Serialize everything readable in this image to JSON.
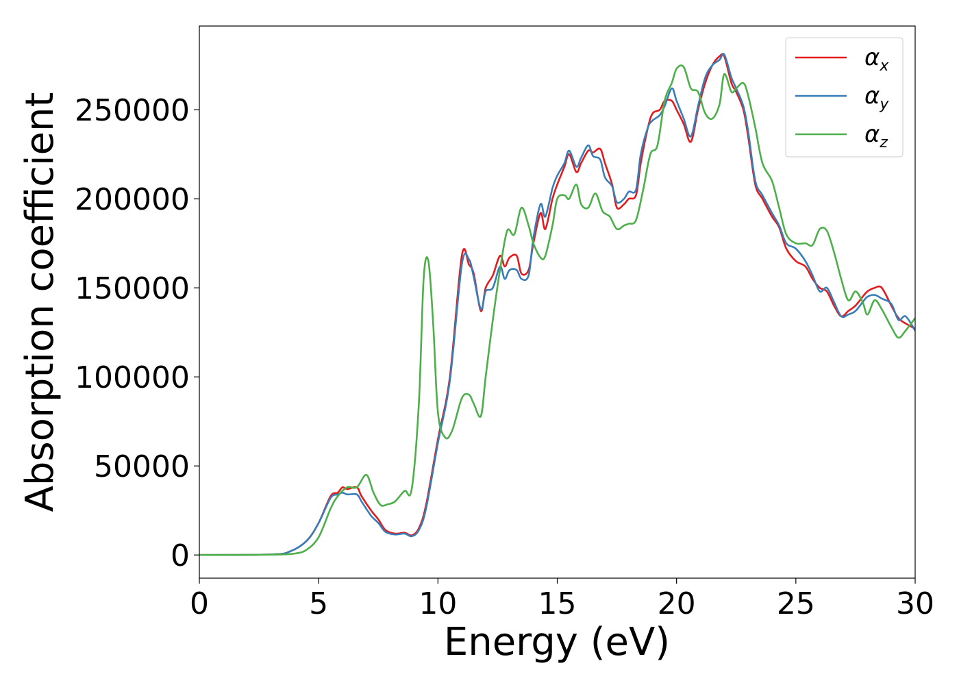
{
  "colors": {
    "alpha_x": "#e41a1c",
    "alpha_y": "#377eb8",
    "alpha_z": "#4daf4a"
  },
  "chart_data": {
    "type": "line",
    "title": "",
    "xlabel": "Energy (eV)",
    "ylabel": "Absorption coefficient",
    "xlim": [
      0,
      30
    ],
    "ylim": [
      -13000,
      297000
    ],
    "grid": false,
    "legend_position": "top-right",
    "x_ticks": [
      0,
      5,
      10,
      15,
      20,
      25,
      30
    ],
    "y_ticks": [
      0,
      50000,
      100000,
      150000,
      200000,
      250000
    ],
    "series": [
      {
        "name": "α_x",
        "legend_base": "α",
        "legend_sub": "x",
        "color": "#e41a1c",
        "x": [
          0,
          3,
          3.8,
          4.5,
          5.0,
          5.5,
          5.8,
          6.0,
          6.2,
          6.6,
          6.8,
          7.2,
          7.5,
          7.8,
          8.2,
          8.6,
          8.9,
          9.2,
          9.5,
          10.0,
          10.5,
          11.0,
          11.3,
          11.5,
          11.8,
          12.0,
          12.3,
          12.6,
          12.8,
          13.0,
          13.3,
          13.5,
          13.8,
          14.0,
          14.3,
          14.5,
          14.8,
          15.0,
          15.3,
          15.5,
          15.8,
          16.0,
          16.3,
          16.5,
          16.8,
          17.0,
          17.3,
          17.5,
          17.8,
          18.0,
          18.3,
          18.5,
          18.8,
          19.0,
          19.3,
          19.5,
          19.8,
          20.0,
          20.3,
          20.6,
          20.9,
          21.2,
          21.5,
          21.8,
          22.0,
          22.3,
          22.5,
          22.8,
          23.0,
          23.3,
          23.6,
          24.0,
          24.3,
          24.6,
          25.0,
          25.4,
          25.7,
          26.0,
          26.3,
          26.6,
          26.9,
          27.2,
          27.5,
          27.8,
          28.0,
          28.3,
          28.6,
          29.0,
          29.3,
          29.6,
          30.0
        ],
        "y": [
          0,
          300,
          2000,
          8000,
          18000,
          33000,
          35000,
          38000,
          37000,
          38000,
          33000,
          25000,
          20000,
          14000,
          12000,
          12500,
          11000,
          15000,
          28000,
          65000,
          100000,
          168000,
          163000,
          158000,
          137000,
          150000,
          157000,
          168000,
          162000,
          167000,
          168000,
          158000,
          160000,
          175000,
          192000,
          183000,
          200000,
          208000,
          218000,
          225000,
          215000,
          220000,
          227000,
          226000,
          228000,
          220000,
          208000,
          195000,
          197000,
          200000,
          202000,
          220000,
          240000,
          248000,
          250000,
          255000,
          255000,
          250000,
          242000,
          232000,
          250000,
          265000,
          275000,
          280000,
          280000,
          265000,
          260000,
          250000,
          235000,
          208000,
          200000,
          190000,
          184000,
          172000,
          165000,
          162000,
          155000,
          150000,
          148000,
          140000,
          134000,
          137000,
          140000,
          145000,
          148000,
          150000,
          150000,
          140000,
          133000,
          130000,
          127000
        ]
      },
      {
        "name": "α_y",
        "legend_base": "α",
        "legend_sub": "y",
        "color": "#377eb8",
        "x": [
          0,
          3,
          3.8,
          4.5,
          5.0,
          5.5,
          5.8,
          6.0,
          6.2,
          6.6,
          6.8,
          7.2,
          7.5,
          7.8,
          8.2,
          8.6,
          8.9,
          9.2,
          9.5,
          10.0,
          10.5,
          11.0,
          11.3,
          11.5,
          11.8,
          12.0,
          12.3,
          12.6,
          12.8,
          13.0,
          13.3,
          13.5,
          13.8,
          14.0,
          14.3,
          14.5,
          14.8,
          15.0,
          15.3,
          15.5,
          15.8,
          16.0,
          16.3,
          16.5,
          16.8,
          17.0,
          17.3,
          17.5,
          17.8,
          18.0,
          18.3,
          18.5,
          18.8,
          19.0,
          19.3,
          19.5,
          19.8,
          20.0,
          20.3,
          20.6,
          20.9,
          21.2,
          21.5,
          21.8,
          22.0,
          22.3,
          22.5,
          22.8,
          23.0,
          23.3,
          23.6,
          24.0,
          24.3,
          24.6,
          25.0,
          25.4,
          25.7,
          26.0,
          26.3,
          26.6,
          26.9,
          27.2,
          27.5,
          27.8,
          28.0,
          28.3,
          28.6,
          29.0,
          29.3,
          29.6,
          30.0
        ],
        "y": [
          0,
          300,
          2000,
          8000,
          18000,
          32000,
          34000,
          35000,
          34000,
          34000,
          30000,
          22000,
          18000,
          13000,
          11500,
          12000,
          10500,
          14000,
          26000,
          63000,
          98000,
          163000,
          166000,
          156000,
          138000,
          148000,
          150000,
          162000,
          155000,
          160000,
          160000,
          155000,
          157000,
          178000,
          197000,
          190000,
          206000,
          213000,
          220000,
          227000,
          218000,
          223000,
          230000,
          224000,
          222000,
          212000,
          207000,
          198000,
          200000,
          204000,
          205000,
          225000,
          240000,
          244000,
          247000,
          252000,
          262000,
          255000,
          245000,
          235000,
          252000,
          268000,
          275000,
          278000,
          281000,
          268000,
          262000,
          252000,
          238000,
          210000,
          202000,
          192000,
          185000,
          175000,
          172000,
          165000,
          157000,
          148000,
          150000,
          142000,
          134000,
          135000,
          137000,
          142000,
          145000,
          146000,
          144000,
          141000,
          132000,
          134000,
          126000
        ]
      },
      {
        "name": "α_z",
        "legend_base": "α",
        "legend_sub": "z",
        "color": "#4daf4a",
        "x": [
          0,
          3,
          4.0,
          4.5,
          5.0,
          5.5,
          5.8,
          6.2,
          6.6,
          7.0,
          7.3,
          7.6,
          7.9,
          8.2,
          8.6,
          8.9,
          9.2,
          9.4,
          9.6,
          9.8,
          10.0,
          10.3,
          10.6,
          11.0,
          11.3,
          11.5,
          11.8,
          12.0,
          12.3,
          12.6,
          12.9,
          13.2,
          13.5,
          13.8,
          14.0,
          14.3,
          14.5,
          14.8,
          15.0,
          15.3,
          15.5,
          15.8,
          16.0,
          16.3,
          16.6,
          16.9,
          17.2,
          17.5,
          17.8,
          18.0,
          18.3,
          18.6,
          18.9,
          19.2,
          19.5,
          19.8,
          20.0,
          20.3,
          20.6,
          20.9,
          21.2,
          21.5,
          21.8,
          22.0,
          22.3,
          22.5,
          22.8,
          23.0,
          23.3,
          23.6,
          24.0,
          24.3,
          24.6,
          25.0,
          25.4,
          25.7,
          26.0,
          26.3,
          26.6,
          26.9,
          27.2,
          27.5,
          27.8,
          28.0,
          28.3,
          28.6,
          29.0,
          29.3,
          29.6,
          30.0
        ],
        "y": [
          0,
          200,
          800,
          3000,
          10000,
          26000,
          33000,
          38000,
          38000,
          45000,
          35000,
          28000,
          28500,
          30000,
          36000,
          37000,
          85000,
          155000,
          165000,
          130000,
          80000,
          66000,
          70000,
          88000,
          90000,
          85000,
          78000,
          100000,
          132000,
          160000,
          182000,
          180000,
          195000,
          185000,
          175000,
          167000,
          168000,
          185000,
          200000,
          202000,
          200000,
          208000,
          197000,
          195000,
          203000,
          193000,
          190000,
          183000,
          185000,
          186000,
          188000,
          205000,
          225000,
          230000,
          255000,
          265000,
          273000,
          274000,
          262000,
          260000,
          248000,
          245000,
          253000,
          270000,
          260000,
          262000,
          265000,
          258000,
          240000,
          220000,
          210000,
          195000,
          180000,
          175000,
          175000,
          174000,
          183000,
          182000,
          170000,
          155000,
          143000,
          148000,
          142000,
          135000,
          143000,
          138000,
          128000,
          122000,
          126000,
          133000
        ]
      }
    ]
  }
}
